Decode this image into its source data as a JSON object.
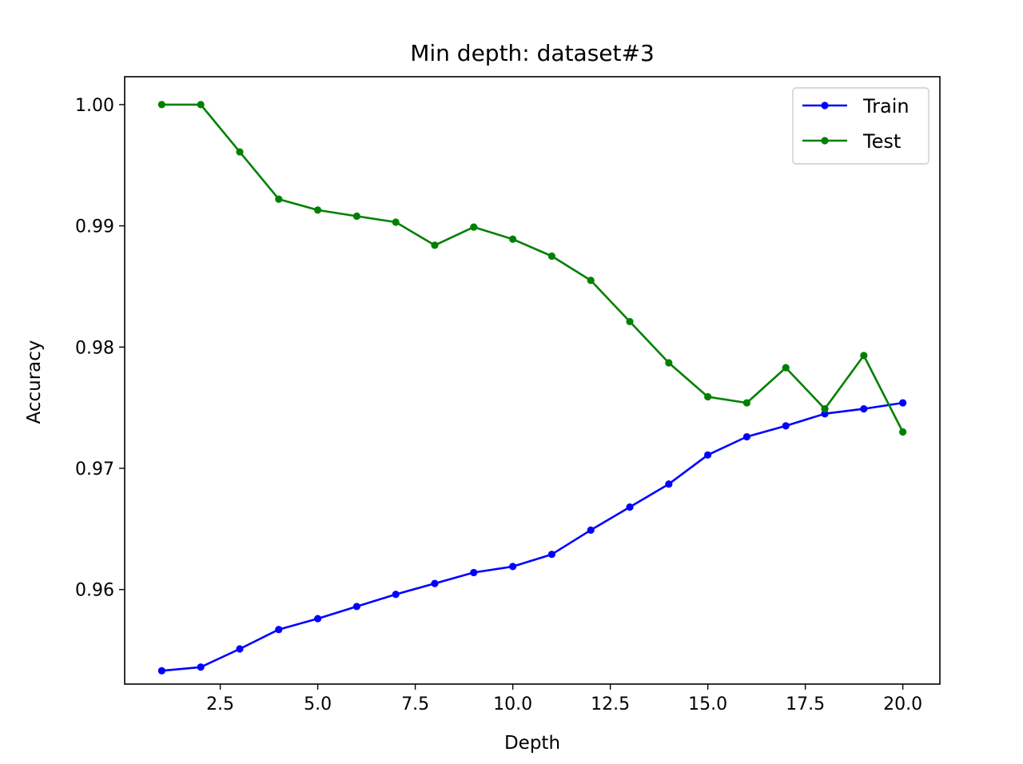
{
  "chart_data": {
    "type": "line",
    "title": "Min depth: dataset#3",
    "xlabel": "Depth",
    "ylabel": "Accuracy",
    "xlim": [
      0.05,
      20.95
    ],
    "ylim": [
      0.9522,
      1.0023
    ],
    "x_ticks": [
      2.5,
      5.0,
      7.5,
      10.0,
      12.5,
      15.0,
      17.5,
      20.0
    ],
    "x_tick_labels": [
      "2.5",
      "5.0",
      "7.5",
      "10.0",
      "12.5",
      "15.0",
      "17.5",
      "20.0"
    ],
    "y_ticks": [
      0.96,
      0.97,
      0.98,
      0.99,
      1.0
    ],
    "y_tick_labels": [
      "0.96",
      "0.97",
      "0.98",
      "0.99",
      "1.00"
    ],
    "grid": false,
    "legend_position": "top-right",
    "x": [
      1,
      2,
      3,
      4,
      5,
      6,
      7,
      8,
      9,
      10,
      11,
      12,
      13,
      14,
      15,
      16,
      17,
      18,
      19,
      20
    ],
    "series": [
      {
        "name": "Train",
        "color": "#0000ff",
        "marker": "circle",
        "values": [
          0.9533,
          0.9536,
          0.9551,
          0.9567,
          0.9576,
          0.9586,
          0.9596,
          0.9605,
          0.9614,
          0.9619,
          0.9629,
          0.9649,
          0.9668,
          0.9687,
          0.9711,
          0.9726,
          0.9735,
          0.9745,
          0.9749,
          0.9754
        ]
      },
      {
        "name": "Test",
        "color": "#008000",
        "marker": "circle",
        "values": [
          1.0,
          1.0,
          0.9961,
          0.9922,
          0.9913,
          0.9908,
          0.9903,
          0.9884,
          0.9899,
          0.9889,
          0.9875,
          0.9855,
          0.9821,
          0.9787,
          0.9759,
          0.9754,
          0.9783,
          0.9749,
          0.9793,
          0.973
        ]
      }
    ]
  }
}
